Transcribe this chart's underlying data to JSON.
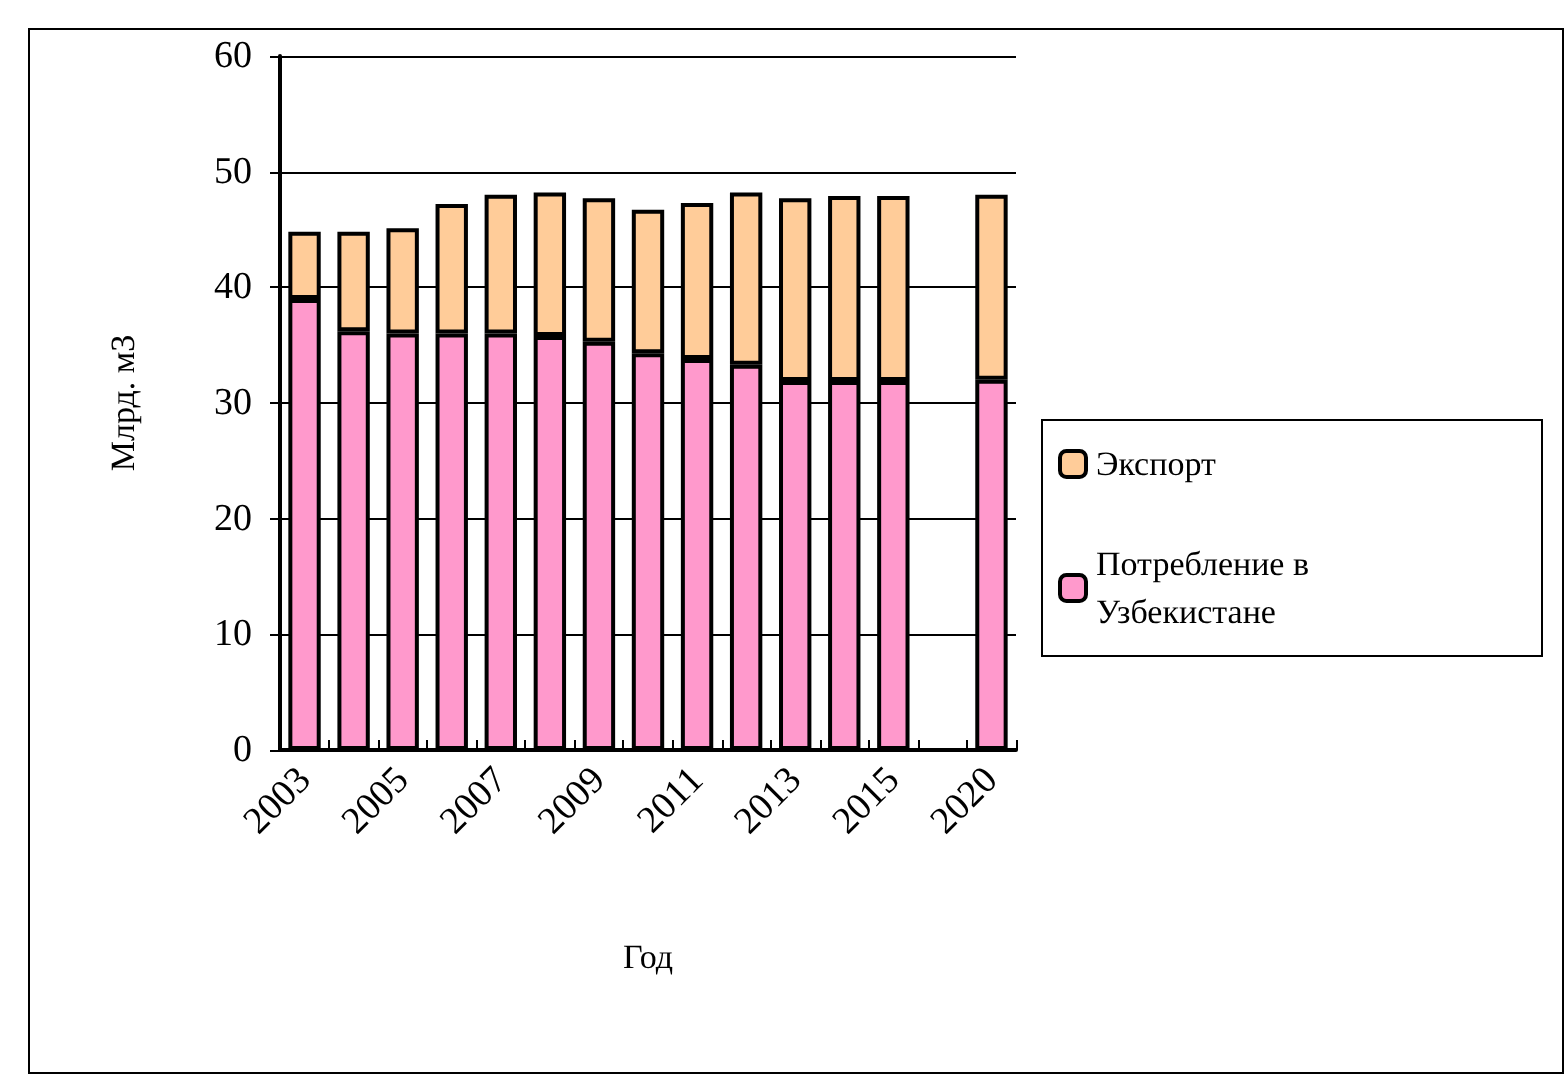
{
  "chart_data": {
    "type": "bar",
    "stacked": true,
    "xlabel": "Год",
    "ylabel": "Млрд. м3",
    "categories": [
      "2003",
      null,
      "2005",
      null,
      "2007",
      null,
      "2009",
      null,
      "2011",
      null,
      "2013",
      null,
      "2015",
      null,
      "2020"
    ],
    "series": [
      {
        "name": "Потребление в Узбекистане",
        "color": "#ff99cc",
        "values": [
          39.0,
          36.2,
          36.0,
          36.0,
          36.0,
          35.8,
          35.3,
          34.3,
          33.8,
          33.3,
          31.9,
          31.9,
          31.9,
          null,
          32
        ]
      },
      {
        "name": "Экспорт",
        "color": "#ffcc99",
        "values": [
          5.8,
          8.6,
          9.1,
          11.2,
          12.0,
          12.4,
          12.4,
          12.4,
          13.5,
          14.9,
          15.8,
          16.0,
          16.0,
          null,
          16.0
        ]
      }
    ],
    "ylim": [
      0,
      60
    ],
    "yticks": [
      0,
      10,
      20,
      30,
      40,
      50,
      60
    ],
    "grid": "y",
    "legend": "right"
  }
}
